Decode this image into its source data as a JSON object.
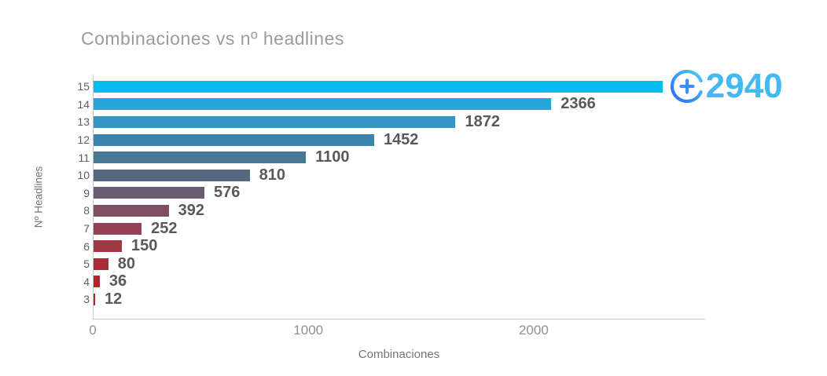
{
  "chart_data": {
    "type": "bar",
    "orientation": "horizontal",
    "title": "Combinaciones vs nº headlines",
    "xlabel": "Combinaciones",
    "ylabel": "Nº Headlines",
    "categories": [
      "15",
      "14",
      "13",
      "12",
      "11",
      "10",
      "9",
      "8",
      "7",
      "6",
      "5",
      "4",
      "3"
    ],
    "values": [
      2940,
      2366,
      1872,
      1452,
      1100,
      810,
      576,
      392,
      252,
      150,
      80,
      36,
      12
    ],
    "bar_colors": [
      "#06bdf0",
      "#28a5d8",
      "#3295c4",
      "#3b84ab",
      "#467795",
      "#556880",
      "#695b72",
      "#7f4f61",
      "#924252",
      "#a13643",
      "#ab2c36",
      "#b2242b",
      "#b71f26"
    ],
    "xlim": [
      0,
      3160
    ],
    "x_ticks": [
      {
        "label": "0",
        "pct": 0
      },
      {
        "label": "1000",
        "pct": 35.2
      },
      {
        "label": "2000",
        "pct": 72.0
      }
    ],
    "grid": false,
    "legend": false,
    "axis_color": "#c9c9c9",
    "value_label_color": "#595959",
    "highlight": {
      "category": "15",
      "label": "2940",
      "text_color": "#41b9f2",
      "icon": "plus-circle-icon",
      "icon_gradient_start": "#2d6cf2",
      "icon_gradient_end": "#48ccf6",
      "plus_color": "#3f8ef2"
    }
  }
}
